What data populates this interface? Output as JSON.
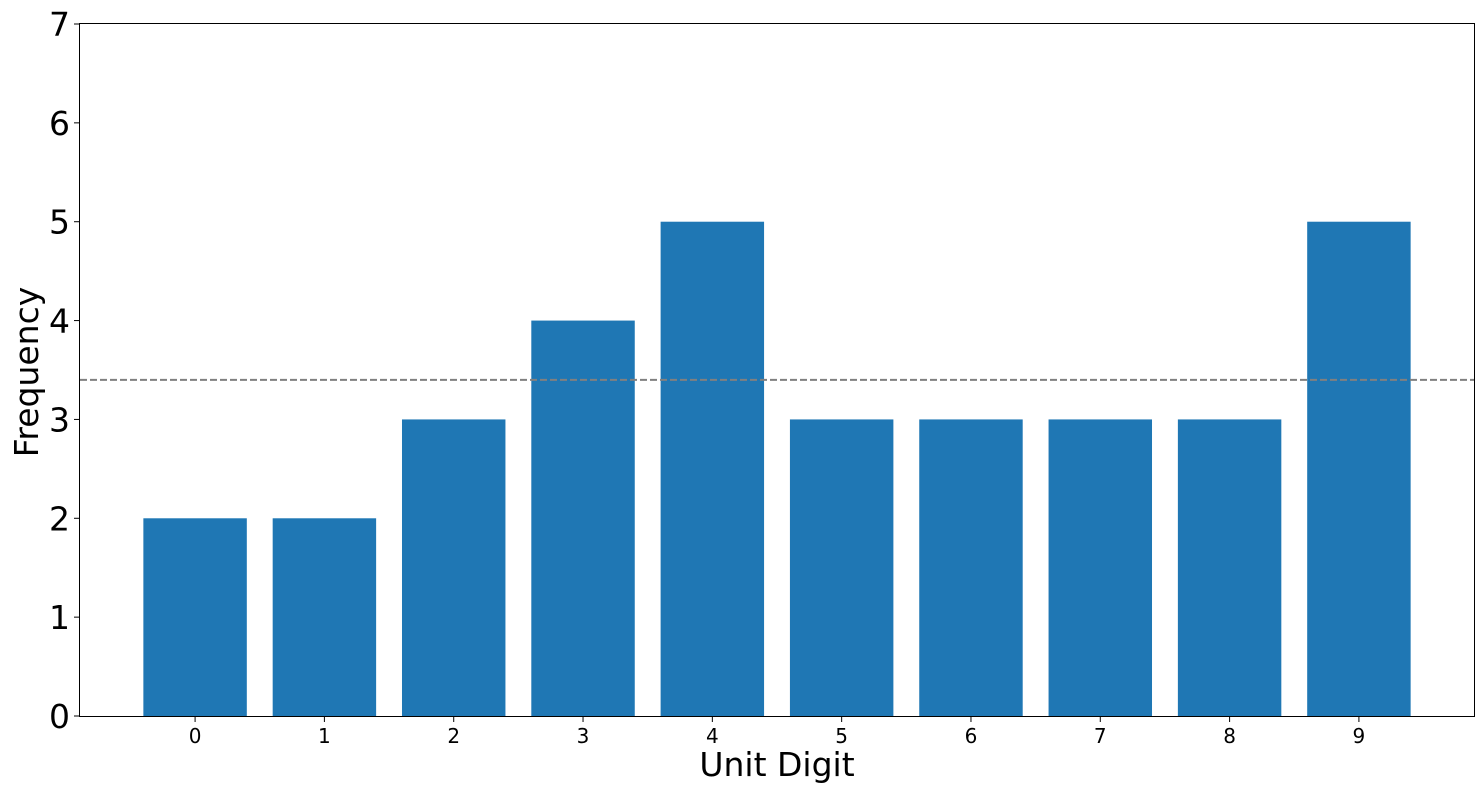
{
  "chart_data": {
    "type": "bar",
    "categories": [
      "0",
      "1",
      "2",
      "3",
      "4",
      "5",
      "6",
      "7",
      "8",
      "9"
    ],
    "values": [
      2,
      2,
      3,
      4,
      5,
      3,
      3,
      3,
      3,
      5
    ],
    "xlabel": "Unit Digit",
    "ylabel": "Frequency",
    "ylim": [
      0,
      7
    ],
    "xlim": [
      -0.89,
      9.89
    ],
    "yticks": [
      0,
      1,
      2,
      3,
      4,
      5,
      6,
      7
    ],
    "reference_line": {
      "value": 3.4,
      "style": "dashed",
      "color": "#808080"
    },
    "bar_color": "#1f77b4",
    "grid": false,
    "legend": "none"
  }
}
